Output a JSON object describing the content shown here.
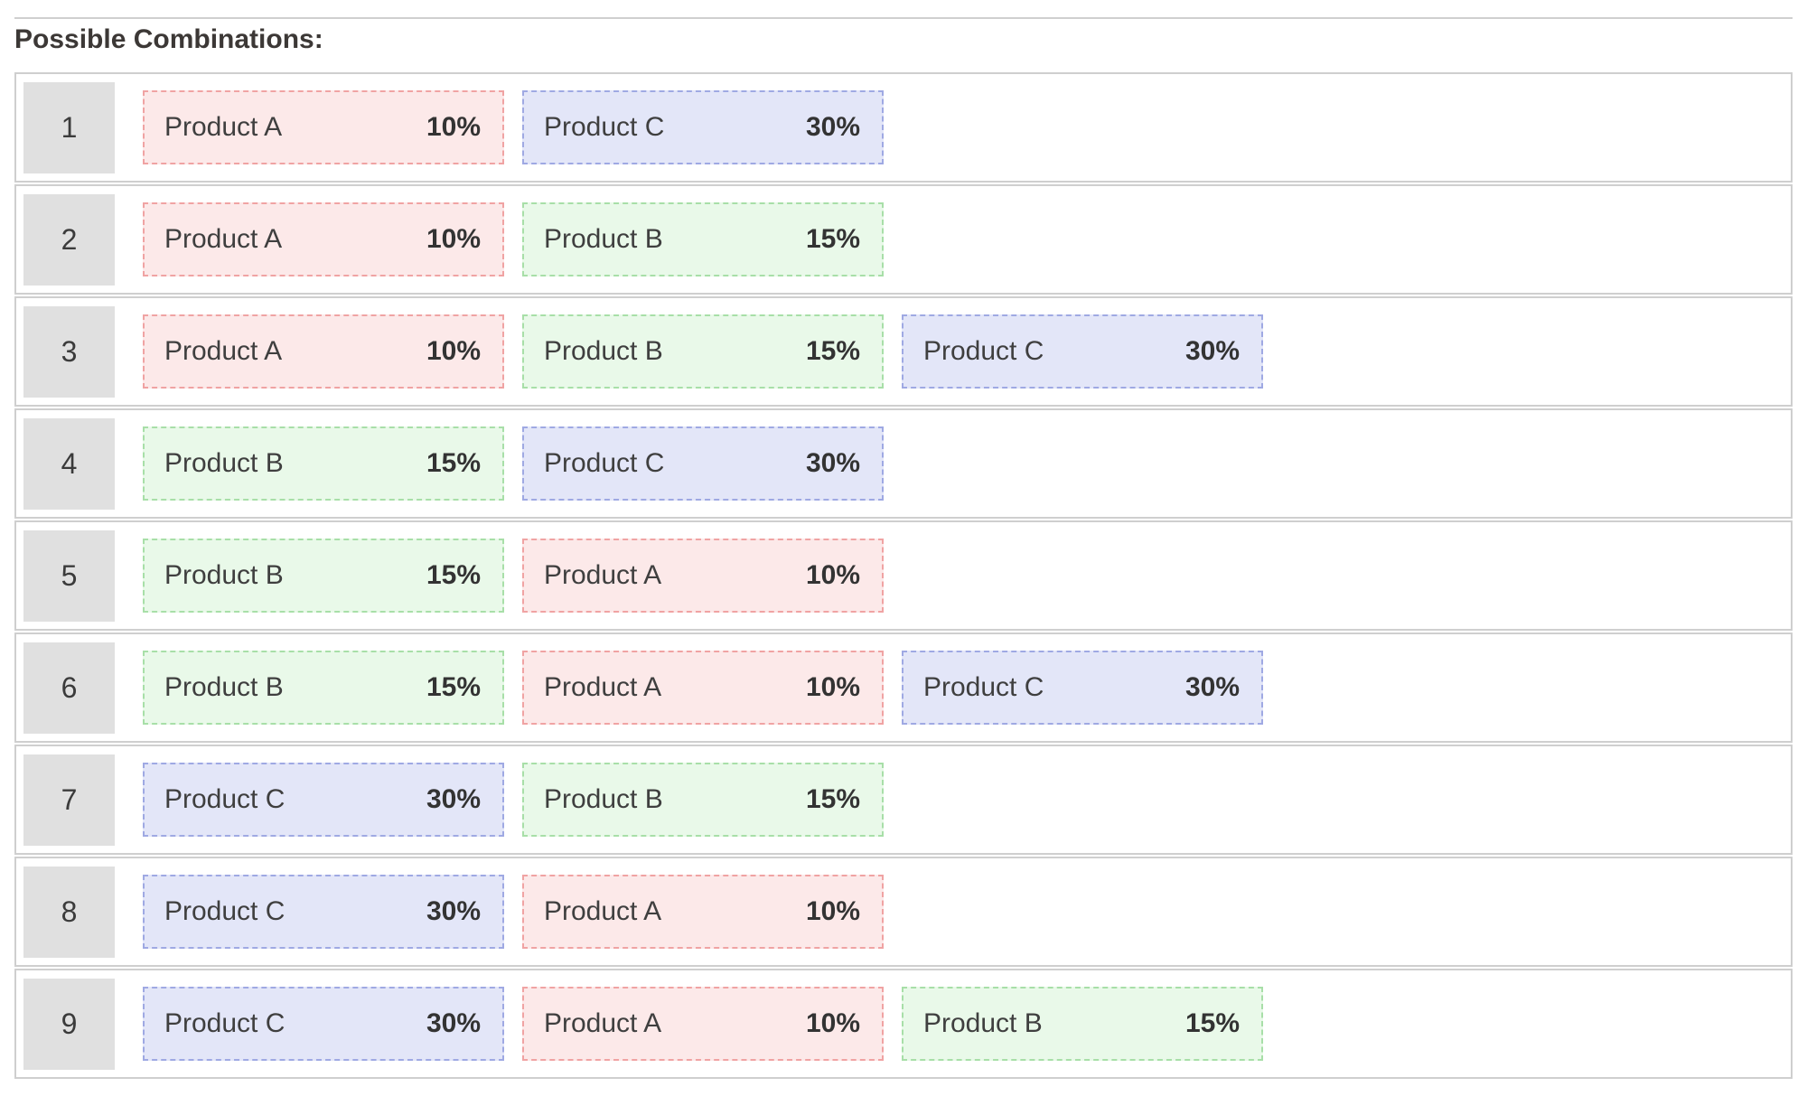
{
  "title": "Possible Combinations:",
  "colors": {
    "product_a_bg": "#fce9e9",
    "product_a_border": "#f0a3a3",
    "product_b_bg": "#e9f9e9",
    "product_b_border": "#a8dfa8",
    "product_c_bg": "#e3e6f8",
    "product_c_border": "#9fa9e3",
    "badge_bg": "#e0e0e0",
    "row_border": "#cfcfcf",
    "text": "#3b3b3b"
  },
  "combinations": [
    {
      "number": "1",
      "items": [
        {
          "type": "a",
          "label": "Product A",
          "percent": "10%"
        },
        {
          "type": "c",
          "label": "Product C",
          "percent": "30%"
        }
      ]
    },
    {
      "number": "2",
      "items": [
        {
          "type": "a",
          "label": "Product A",
          "percent": "10%"
        },
        {
          "type": "b",
          "label": "Product B",
          "percent": "15%"
        }
      ]
    },
    {
      "number": "3",
      "items": [
        {
          "type": "a",
          "label": "Product A",
          "percent": "10%"
        },
        {
          "type": "b",
          "label": "Product B",
          "percent": "15%"
        },
        {
          "type": "c",
          "label": "Product C",
          "percent": "30%"
        }
      ]
    },
    {
      "number": "4",
      "items": [
        {
          "type": "b",
          "label": "Product B",
          "percent": "15%"
        },
        {
          "type": "c",
          "label": "Product C",
          "percent": "30%"
        }
      ]
    },
    {
      "number": "5",
      "items": [
        {
          "type": "b",
          "label": "Product B",
          "percent": "15%"
        },
        {
          "type": "a",
          "label": "Product A",
          "percent": "10%"
        }
      ]
    },
    {
      "number": "6",
      "items": [
        {
          "type": "b",
          "label": "Product B",
          "percent": "15%"
        },
        {
          "type": "a",
          "label": "Product A",
          "percent": "10%"
        },
        {
          "type": "c",
          "label": "Product C",
          "percent": "30%"
        }
      ]
    },
    {
      "number": "7",
      "items": [
        {
          "type": "c",
          "label": "Product C",
          "percent": "30%"
        },
        {
          "type": "b",
          "label": "Product B",
          "percent": "15%"
        }
      ]
    },
    {
      "number": "8",
      "items": [
        {
          "type": "c",
          "label": "Product C",
          "percent": "30%"
        },
        {
          "type": "a",
          "label": "Product A",
          "percent": "10%"
        }
      ]
    },
    {
      "number": "9",
      "items": [
        {
          "type": "c",
          "label": "Product C",
          "percent": "30%"
        },
        {
          "type": "a",
          "label": "Product A",
          "percent": "10%"
        },
        {
          "type": "b",
          "label": "Product B",
          "percent": "15%"
        }
      ]
    }
  ]
}
